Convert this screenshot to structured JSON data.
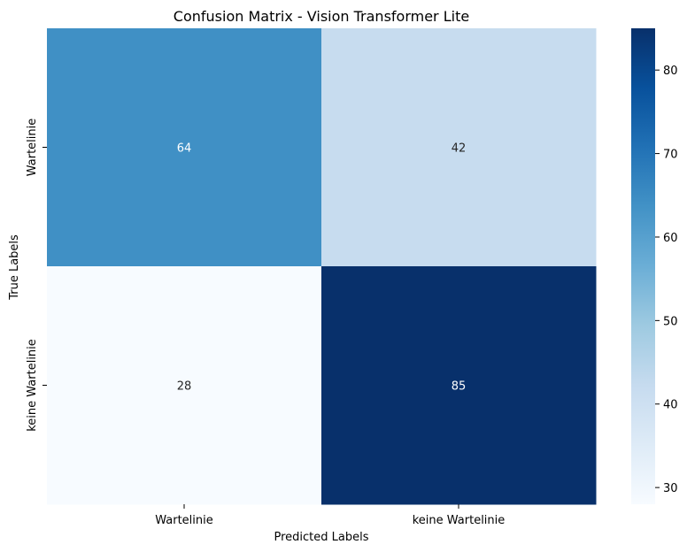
{
  "chart_data": {
    "type": "heatmap",
    "title": "Confusion Matrix - Vision Transformer Lite",
    "xlabel": "Predicted Labels",
    "ylabel": "True Labels",
    "x_categories": [
      "Wartelinie",
      "keine Wartelinie"
    ],
    "y_categories": [
      "Wartelinie",
      "keine Wartelinie"
    ],
    "values": [
      [
        64,
        42
      ],
      [
        28,
        85
      ]
    ],
    "colormap": "Blues",
    "colorbar": {
      "range": [
        28,
        85
      ],
      "ticks": [
        30,
        40,
        50,
        60,
        70,
        80
      ],
      "tick_labels": [
        "30",
        "40",
        "50",
        "60",
        "70",
        "80"
      ]
    },
    "annotations": true
  }
}
